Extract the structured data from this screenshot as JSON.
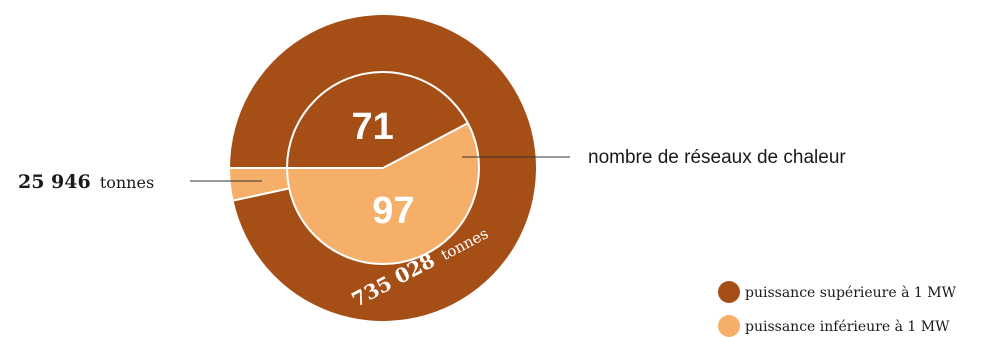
{
  "chart_data": [
    {
      "type": "pie",
      "ring": "outer",
      "unit": "tonnes",
      "slices": [
        {
          "label": "puissance supérieure à 1 MW",
          "value": 735028,
          "value_text": "735 028",
          "unit_text": "tonnes"
        },
        {
          "label": "puissance inférieure à 1 MW",
          "value": 25946,
          "value_text": "25 946",
          "unit_text": "tonnes"
        }
      ]
    },
    {
      "type": "pie",
      "ring": "inner",
      "annotation": "nombre de réseaux de chaleur",
      "slices": [
        {
          "label": "puissance supérieure à 1 MW",
          "value": 71,
          "value_text": "71"
        },
        {
          "label": "puissance inférieure à 1 MW",
          "value": 97,
          "value_text": "97"
        }
      ]
    }
  ],
  "legend": {
    "placement": "bottom-right",
    "items": [
      {
        "label": "puissance supérieure à 1 MW",
        "color": "#a54f17"
      },
      {
        "label": "puissance inférieure à 1 MW",
        "color": "#f5af68"
      }
    ]
  },
  "colors": {
    "dark": "#a54f17",
    "light": "#f5af68",
    "separator": "#ffffff",
    "label_text": "#1a1a1a",
    "leader": "#333333"
  }
}
